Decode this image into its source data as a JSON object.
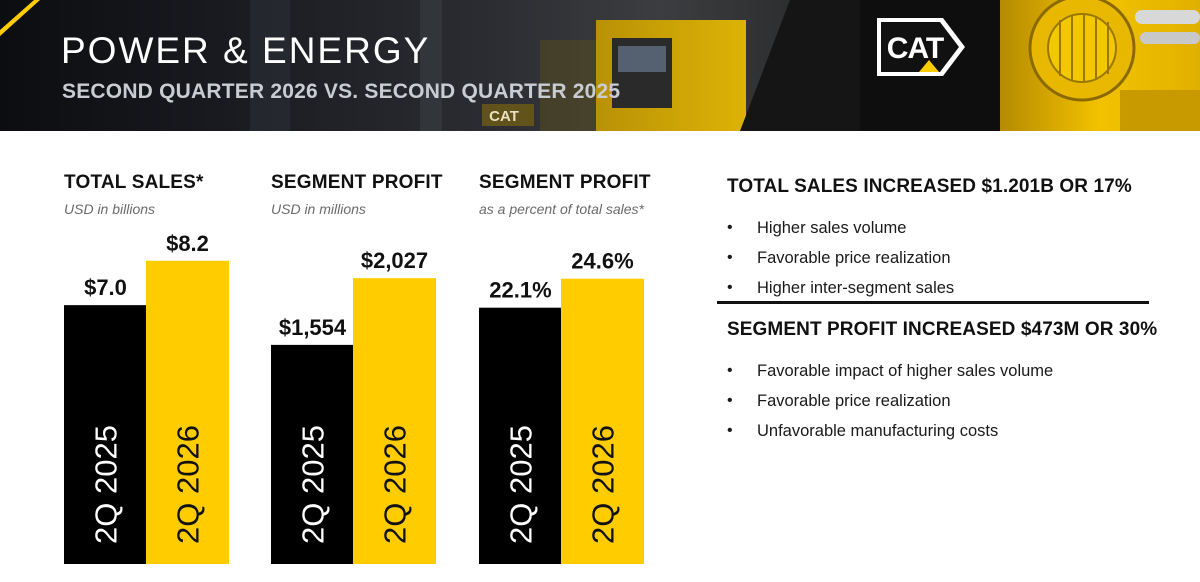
{
  "header": {
    "title": "POWER & ENERGY",
    "subtitle": "SECOND QUARTER 2026 VS. SECOND QUARTER 2025",
    "logo_text": "CAT",
    "colors": {
      "accent": "#ffcc00",
      "dark": "#000000"
    }
  },
  "chart_data": [
    {
      "type": "bar",
      "title": "TOTAL SALES*",
      "subtitle": "USD in billions",
      "categories": [
        "2Q 2025",
        "2Q 2026"
      ],
      "values": [
        7.0,
        8.2
      ],
      "data_labels": [
        "$7.0",
        "$8.2"
      ],
      "colors": [
        "#000000",
        "#ffcc00"
      ],
      "ylim": [
        0,
        10.6
      ]
    },
    {
      "type": "bar",
      "title": "SEGMENT PROFIT",
      "subtitle": "USD in millions",
      "categories": [
        "2Q 2025",
        "2Q 2026"
      ],
      "values": [
        1554,
        2027
      ],
      "data_labels": [
        "$1,554",
        "$2,027"
      ],
      "colors": [
        "#000000",
        "#ffcc00"
      ],
      "ylim": [
        0,
        2780
      ]
    },
    {
      "type": "bar",
      "title": "SEGMENT PROFIT",
      "subtitle": "as a percent of total sales*",
      "categories": [
        "2Q 2025",
        "2Q 2026"
      ],
      "values": [
        22.1,
        24.6
      ],
      "data_labels": [
        "22.1%",
        "24.6%"
      ],
      "colors": [
        "#000000",
        "#ffcc00"
      ],
      "ylim": [
        0,
        33.8
      ]
    }
  ],
  "summary": [
    {
      "heading": "TOTAL SALES INCREASED $1.201B OR 17%",
      "bullets": [
        "Higher sales volume",
        "Favorable price realization",
        "Higher inter-segment sales"
      ]
    },
    {
      "heading": "SEGMENT PROFIT INCREASED $473M OR 30%",
      "bullets": [
        "Favorable impact of higher sales volume",
        "Favorable price realization",
        "Unfavorable manufacturing costs"
      ]
    }
  ],
  "bullet_glyph": "•"
}
